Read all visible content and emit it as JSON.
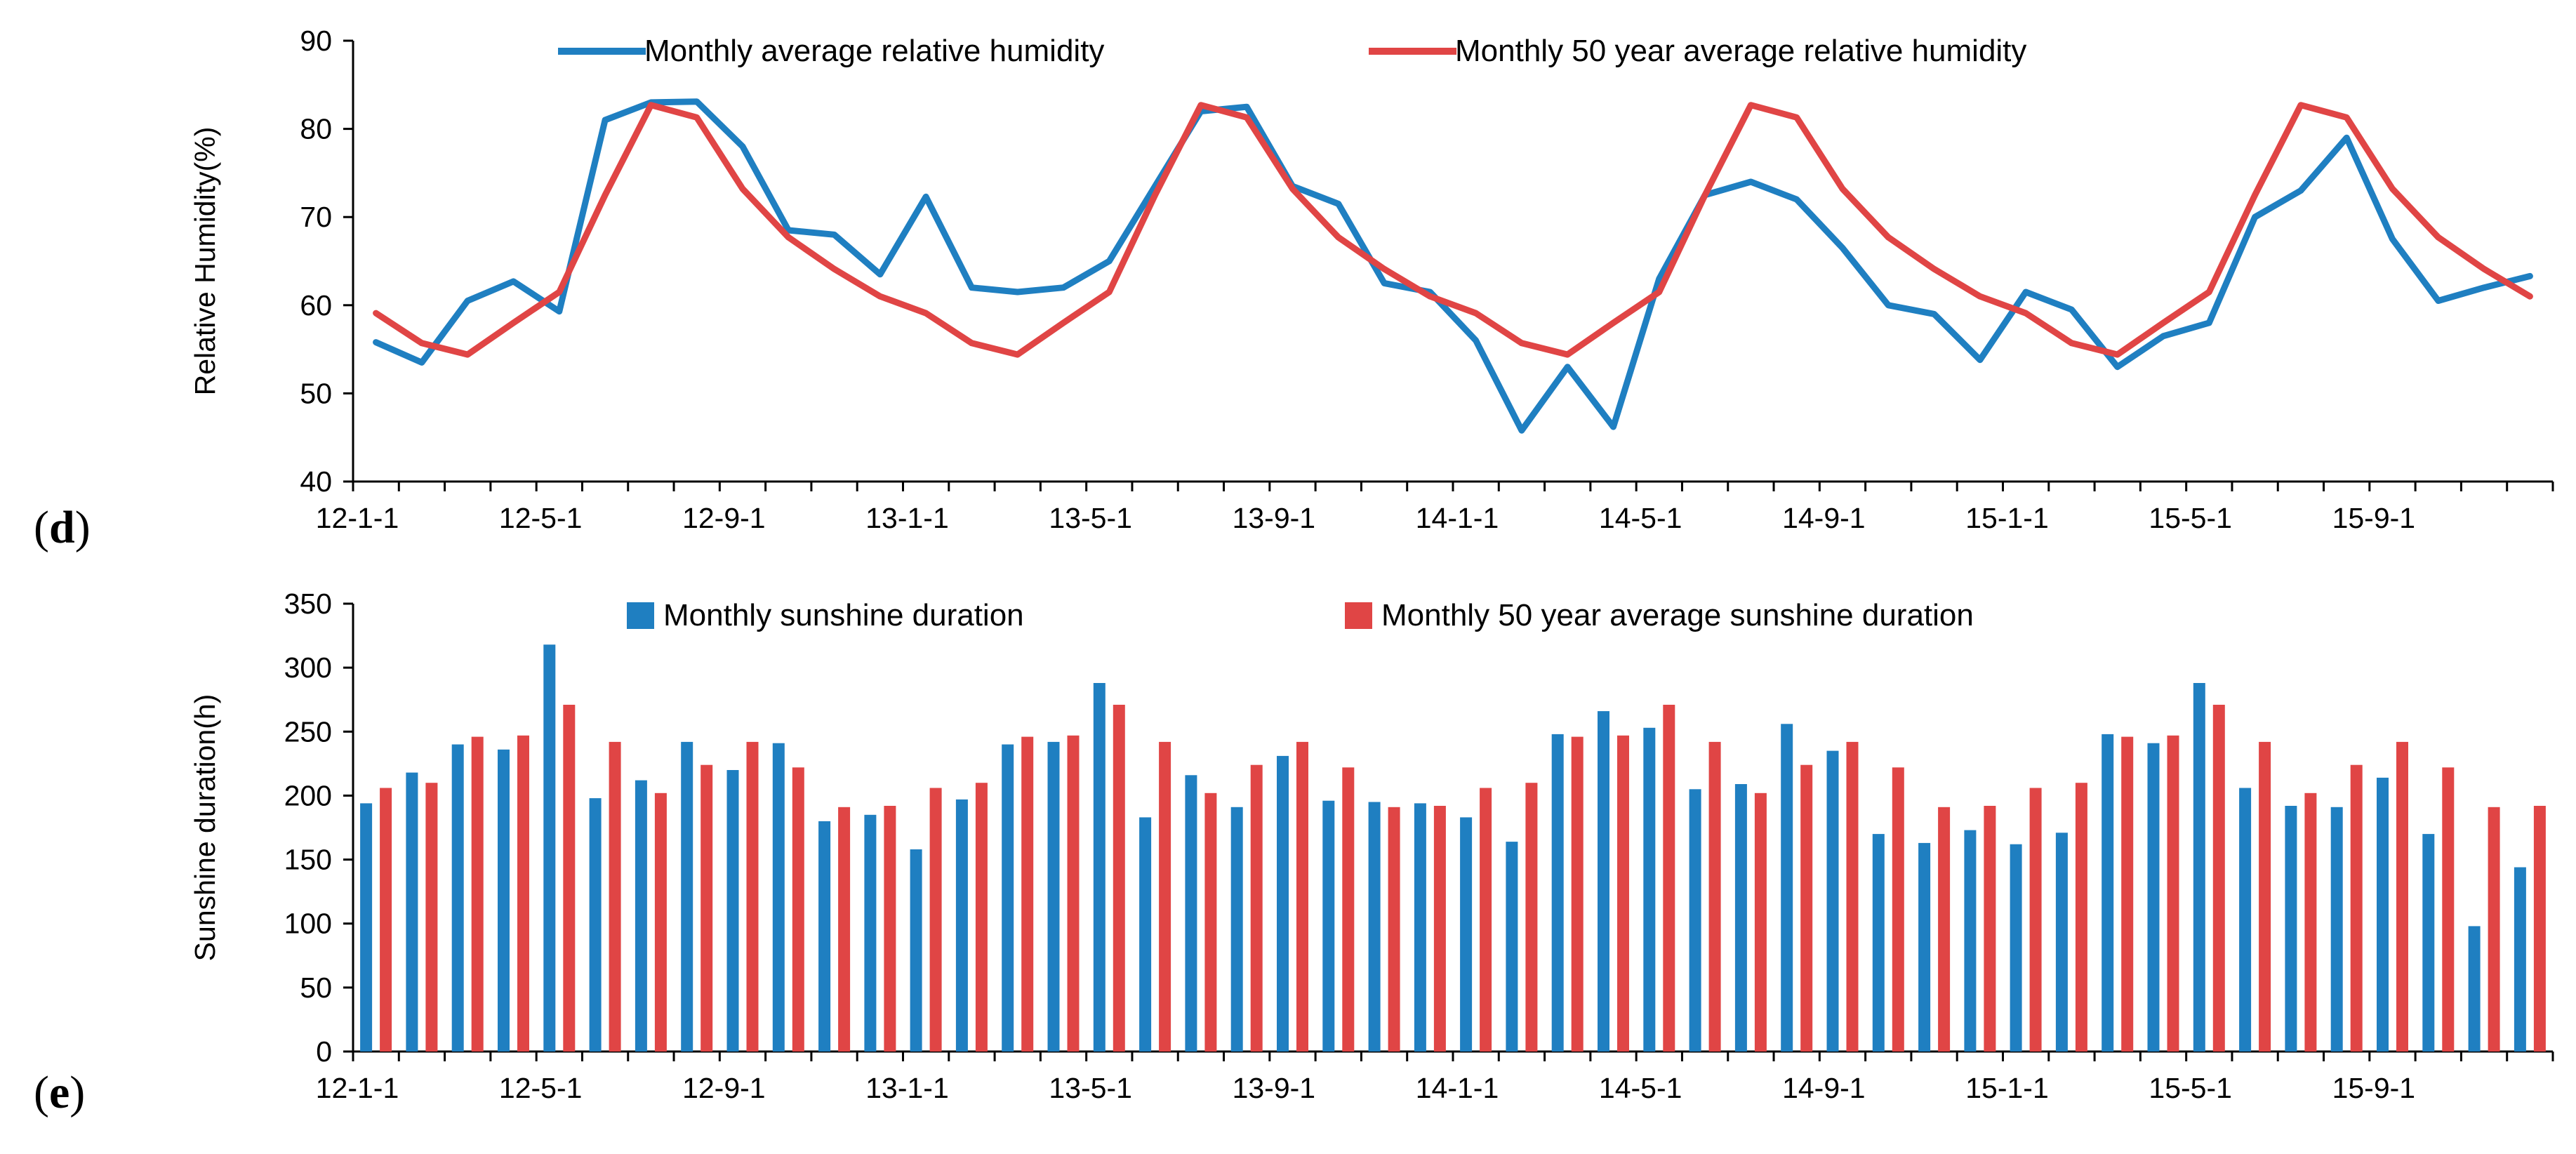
{
  "chart_data": [
    {
      "type": "line",
      "panel_label": "(d)",
      "panel_letter": "d",
      "ylabel": "Relative Humidity(%)",
      "ylim": [
        40,
        90
      ],
      "yticks": [
        40,
        50,
        60,
        70,
        80,
        90
      ],
      "n_points": 48,
      "xtick_labels": [
        "12-1-1",
        "12-5-1",
        "12-9-1",
        "13-1-1",
        "13-5-1",
        "13-9-1",
        "14-1-1",
        "14-5-1",
        "14-9-1",
        "15-1-1",
        "15-5-1",
        "15-9-1"
      ],
      "legend_position": "top",
      "series": [
        {
          "name": "Monthly average relative humidity",
          "color": "#1F7FC1",
          "values": [
            55.8,
            53.5,
            60.5,
            62.7,
            59.3,
            81.0,
            83.0,
            83.1,
            78.0,
            68.5,
            68.0,
            63.5,
            72.3,
            62.0,
            61.5,
            62.0,
            65.0,
            73.5,
            82.0,
            82.5,
            73.5,
            71.5,
            62.5,
            61.5,
            56.0,
            45.8,
            53.0,
            46.2,
            63.0,
            72.5,
            74.0,
            72.0,
            66.5,
            60.0,
            59.0,
            53.8,
            61.5,
            59.5,
            53.0,
            56.5,
            58.0,
            70.0,
            73.0,
            79.0,
            67.5,
            60.5,
            62.0,
            63.3
          ]
        },
        {
          "name": "Monthly 50 year average relative humidity",
          "color": "#E04545",
          "values": [
            59.1,
            55.7,
            54.4,
            58.0,
            61.5,
            72.5,
            82.7,
            81.3,
            73.2,
            67.7,
            64.1,
            61.0,
            59.1,
            55.7,
            54.4,
            58.0,
            61.5,
            72.5,
            82.7,
            81.3,
            73.2,
            67.7,
            64.1,
            61.0,
            59.1,
            55.7,
            54.4,
            58.0,
            61.5,
            72.5,
            82.7,
            81.3,
            73.2,
            67.7,
            64.1,
            61.0,
            59.1,
            55.7,
            54.4,
            58.0,
            61.5,
            72.5,
            82.7,
            81.3,
            73.2,
            67.7,
            64.1,
            61.0
          ]
        }
      ]
    },
    {
      "type": "bar",
      "panel_label": "(e)",
      "panel_letter": "e",
      "ylabel": "Sunshine duration(h)",
      "ylim": [
        0,
        350
      ],
      "yticks": [
        0,
        50,
        100,
        150,
        200,
        250,
        300,
        350
      ],
      "n_points": 48,
      "xtick_labels": [
        "12-1-1",
        "12-5-1",
        "12-9-1",
        "13-1-1",
        "13-5-1",
        "13-9-1",
        "14-1-1",
        "14-5-1",
        "14-9-1",
        "15-1-1",
        "15-5-1",
        "15-9-1"
      ],
      "legend_position": "top",
      "series": [
        {
          "name": "Monthly sunshine duration",
          "color": "#1F7FC1",
          "values": [
            194,
            218,
            240,
            236,
            318,
            198,
            212,
            242,
            220,
            241,
            180,
            185,
            158,
            197,
            240,
            242,
            288,
            183,
            216,
            191,
            231,
            196,
            195,
            194,
            183,
            164,
            248,
            266,
            253,
            205,
            209,
            256,
            235,
            170,
            163,
            173,
            162,
            171,
            248,
            241,
            288,
            206,
            192,
            191,
            214,
            170,
            98,
            144
          ]
        },
        {
          "name": "Monthly 50 year average sunshine duration",
          "color": "#E04545",
          "values": [
            206,
            210,
            246,
            247,
            271,
            242,
            202,
            224,
            242,
            222,
            191,
            192,
            206,
            210,
            246,
            247,
            271,
            242,
            202,
            224,
            242,
            222,
            191,
            192,
            206,
            210,
            246,
            247,
            271,
            242,
            202,
            224,
            242,
            222,
            191,
            192,
            206,
            210,
            246,
            247,
            271,
            242,
            202,
            224,
            242,
            222,
            191,
            192
          ]
        }
      ]
    }
  ]
}
